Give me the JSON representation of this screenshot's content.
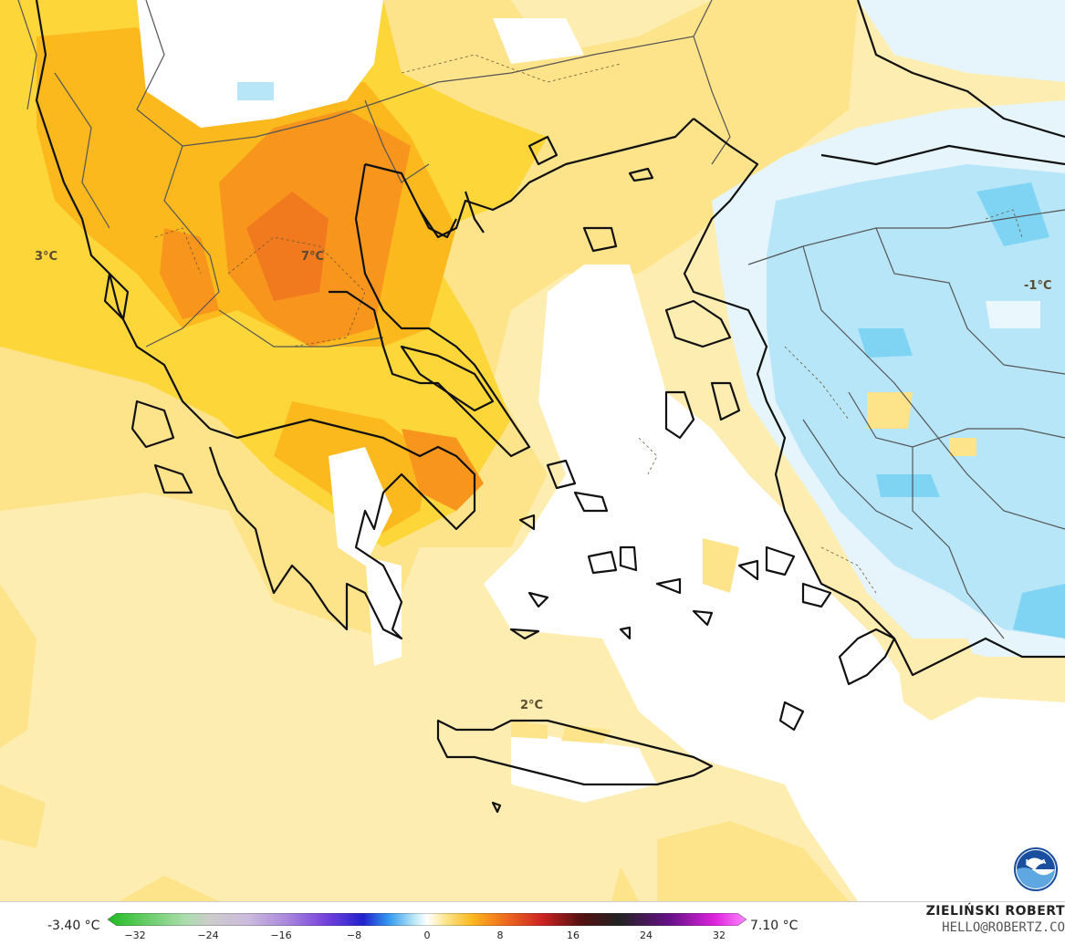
{
  "map": {
    "colors": {
      "base_warm": "#fdedb0",
      "warm1": "#fde38a",
      "warm2": "#fdd63a",
      "warm3": "#fbb91e",
      "warm4": "#f7951c",
      "warm5": "#f06f1f",
      "zero": "#ffffff",
      "cold1": "#e6f4fc",
      "cold2": "#b7e6f8",
      "cold3": "#7fd4f4",
      "land_border": "#111111",
      "country_border": "#555555"
    },
    "labels": [
      {
        "id": "label-3c",
        "text": "3°C"
      },
      {
        "id": "label-7c",
        "text": "7°C"
      },
      {
        "id": "label-minus1c",
        "text": "-1°C"
      },
      {
        "id": "label-2c",
        "text": "2°C"
      }
    ]
  },
  "legend": {
    "min_value": "-3.40 °C",
    "max_value": "7.10 °C",
    "ticks": [
      "−32",
      "−24",
      "−16",
      "−8",
      "0",
      "8",
      "16",
      "24",
      "32"
    ]
  },
  "credit": {
    "name": "ZIELIŃSKI ROBERT",
    "email": "HELLO@ROBERTZ.CO"
  },
  "logo": {
    "text": "NOAA",
    "icon": "noaa-logo-icon"
  }
}
